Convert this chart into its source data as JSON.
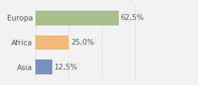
{
  "categories": [
    "Europa",
    "Africa",
    "Asia"
  ],
  "values": [
    62.5,
    25.0,
    12.5
  ],
  "bar_colors": [
    "#a8bf8a",
    "#f0b87a",
    "#7b8fc0"
  ],
  "labels": [
    "62,5%",
    "25,0%",
    "12,5%"
  ],
  "background_color": "#f2f2f2",
  "xlim": [
    0,
    100
  ],
  "bar_height": 0.6,
  "label_fontsize": 7.5,
  "category_fontsize": 7.5,
  "text_color": "#555555",
  "grid_color": "#dddddd"
}
